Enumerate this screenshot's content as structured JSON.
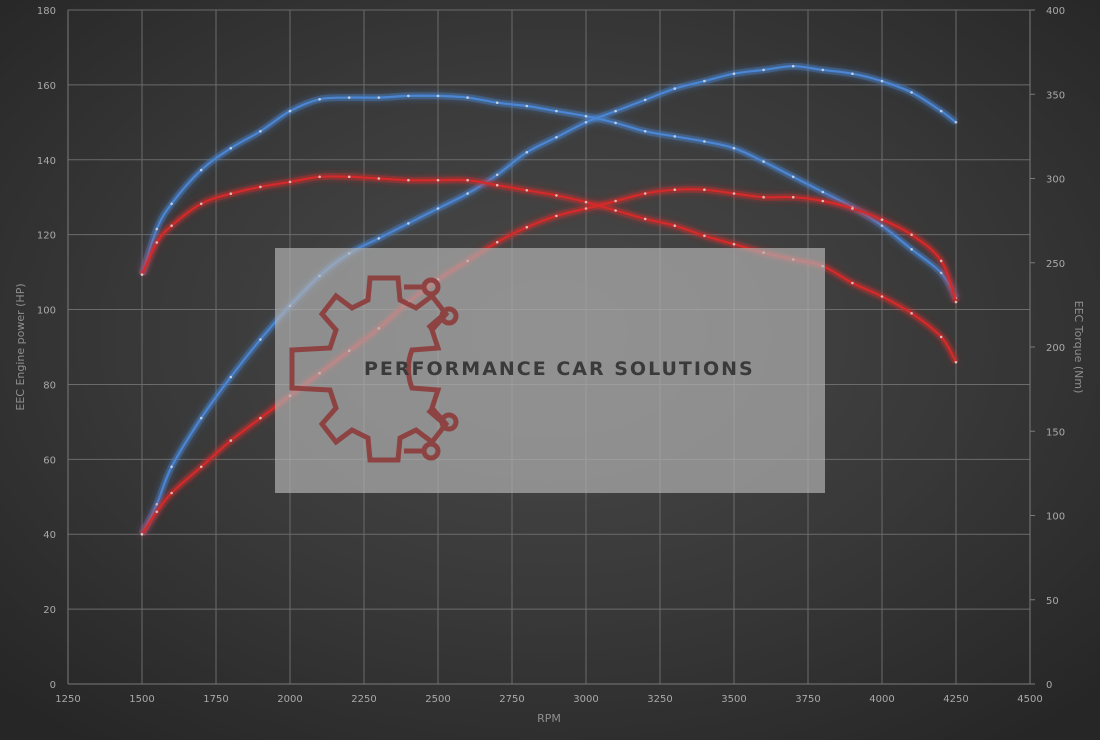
{
  "watermark": {
    "text": "PERFORMANCE CAR SOLUTIONS"
  },
  "chart_data": {
    "type": "line",
    "title": "",
    "xlabel": "RPM",
    "ylabel_left": "EEC Engine power (HP)",
    "ylabel_right": "EEC Torque (Nm)",
    "xlim": [
      1250,
      4500
    ],
    "ylim_left": [
      0,
      180
    ],
    "ylim_right": [
      0,
      400
    ],
    "x_ticks": [
      1250,
      1500,
      1750,
      2000,
      2250,
      2500,
      2750,
      3000,
      3250,
      3500,
      3750,
      4000,
      4250,
      4500
    ],
    "y_left_ticks": [
      0,
      20,
      40,
      60,
      80,
      100,
      120,
      140,
      160,
      180
    ],
    "y_right_ticks": [
      0,
      50,
      100,
      150,
      200,
      250,
      300,
      350,
      400
    ],
    "grid": true,
    "colors": {
      "modified": "#4a86d4",
      "stock": "#d42a2a"
    },
    "series": [
      {
        "metric": "power",
        "axis": "left",
        "variant": "modified",
        "x": [
          1500,
          1550,
          1600,
          1700,
          1800,
          1900,
          2000,
          2100,
          2200,
          2300,
          2400,
          2500,
          2600,
          2700,
          2800,
          2900,
          3000,
          3100,
          3200,
          3300,
          3400,
          3500,
          3600,
          3700,
          3800,
          3900,
          4000,
          4100,
          4200,
          4250
        ],
        "y": [
          40,
          48,
          58,
          71,
          82,
          92,
          101,
          109,
          115,
          119,
          123,
          127,
          131,
          136,
          142,
          146,
          150,
          153,
          156,
          159,
          161,
          163,
          164,
          165,
          164,
          163,
          161,
          158,
          153,
          150
        ]
      },
      {
        "metric": "torque",
        "axis": "right",
        "variant": "modified",
        "x": [
          1500,
          1550,
          1600,
          1700,
          1800,
          1900,
          2000,
          2100,
          2200,
          2300,
          2400,
          2500,
          2600,
          2700,
          2800,
          2900,
          3000,
          3100,
          3200,
          3300,
          3400,
          3500,
          3600,
          3700,
          3800,
          3900,
          4000,
          4100,
          4200,
          4250
        ],
        "y": [
          243,
          270,
          285,
          305,
          318,
          328,
          340,
          347,
          348,
          348,
          349,
          349,
          348,
          345,
          343,
          340,
          337,
          333,
          328,
          325,
          322,
          318,
          310,
          301,
          292,
          283,
          272,
          258,
          244,
          229
        ]
      },
      {
        "metric": "power",
        "axis": "left",
        "variant": "stock",
        "x": [
          1500,
          1550,
          1600,
          1700,
          1800,
          1900,
          2000,
          2100,
          2200,
          2300,
          2400,
          2500,
          2600,
          2700,
          2800,
          2900,
          3000,
          3100,
          3200,
          3300,
          3400,
          3500,
          3600,
          3700,
          3800,
          3900,
          4000,
          4100,
          4200,
          4250
        ],
        "y": [
          40,
          46,
          51,
          58,
          65,
          71,
          77,
          83,
          89,
          95,
          102,
          108,
          113,
          118,
          122,
          125,
          127,
          129,
          131,
          132,
          132,
          131,
          130,
          130,
          129,
          127,
          124,
          120,
          113,
          102
        ]
      },
      {
        "metric": "torque",
        "axis": "right",
        "variant": "stock",
        "x": [
          1500,
          1550,
          1600,
          1700,
          1800,
          1900,
          2000,
          2100,
          2200,
          2300,
          2400,
          2500,
          2600,
          2700,
          2800,
          2900,
          3000,
          3100,
          3200,
          3300,
          3400,
          3500,
          3600,
          3700,
          3800,
          3900,
          4000,
          4100,
          4200,
          4250
        ],
        "y": [
          243,
          262,
          272,
          285,
          291,
          295,
          298,
          301,
          301,
          300,
          299,
          299,
          299,
          296,
          293,
          290,
          286,
          281,
          276,
          272,
          266,
          261,
          256,
          252,
          248,
          238,
          230,
          220,
          206,
          191
        ]
      }
    ]
  }
}
